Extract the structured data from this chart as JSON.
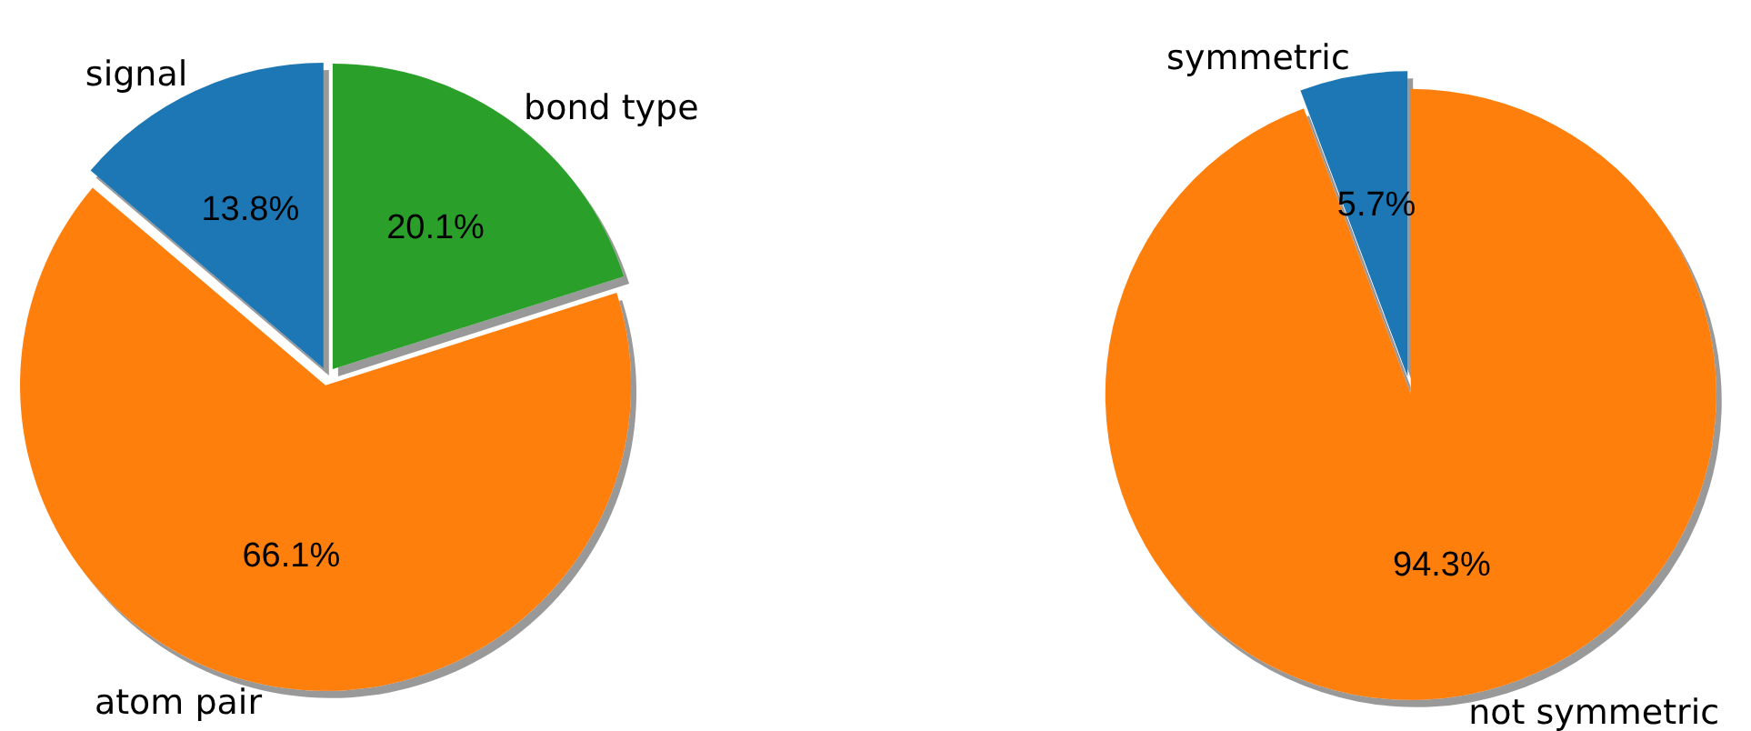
{
  "chart_data": [
    {
      "type": "pie",
      "categories": [
        "signal",
        "atom pair",
        "bond type"
      ],
      "values": [
        13.8,
        66.1,
        20.1
      ],
      "colors": [
        "#1f77b4",
        "#ff7f0e",
        "#2ca02c"
      ],
      "value_labels": [
        "13.8%",
        "66.1%",
        "20.1%"
      ],
      "legend": false
    },
    {
      "type": "pie",
      "categories": [
        "symmetric",
        "not symmetric"
      ],
      "values": [
        5.7,
        94.3
      ],
      "colors": [
        "#1f77b4",
        "#ff7f0e"
      ],
      "value_labels": [
        "5.7%",
        "94.3%"
      ],
      "legend": false
    }
  ]
}
